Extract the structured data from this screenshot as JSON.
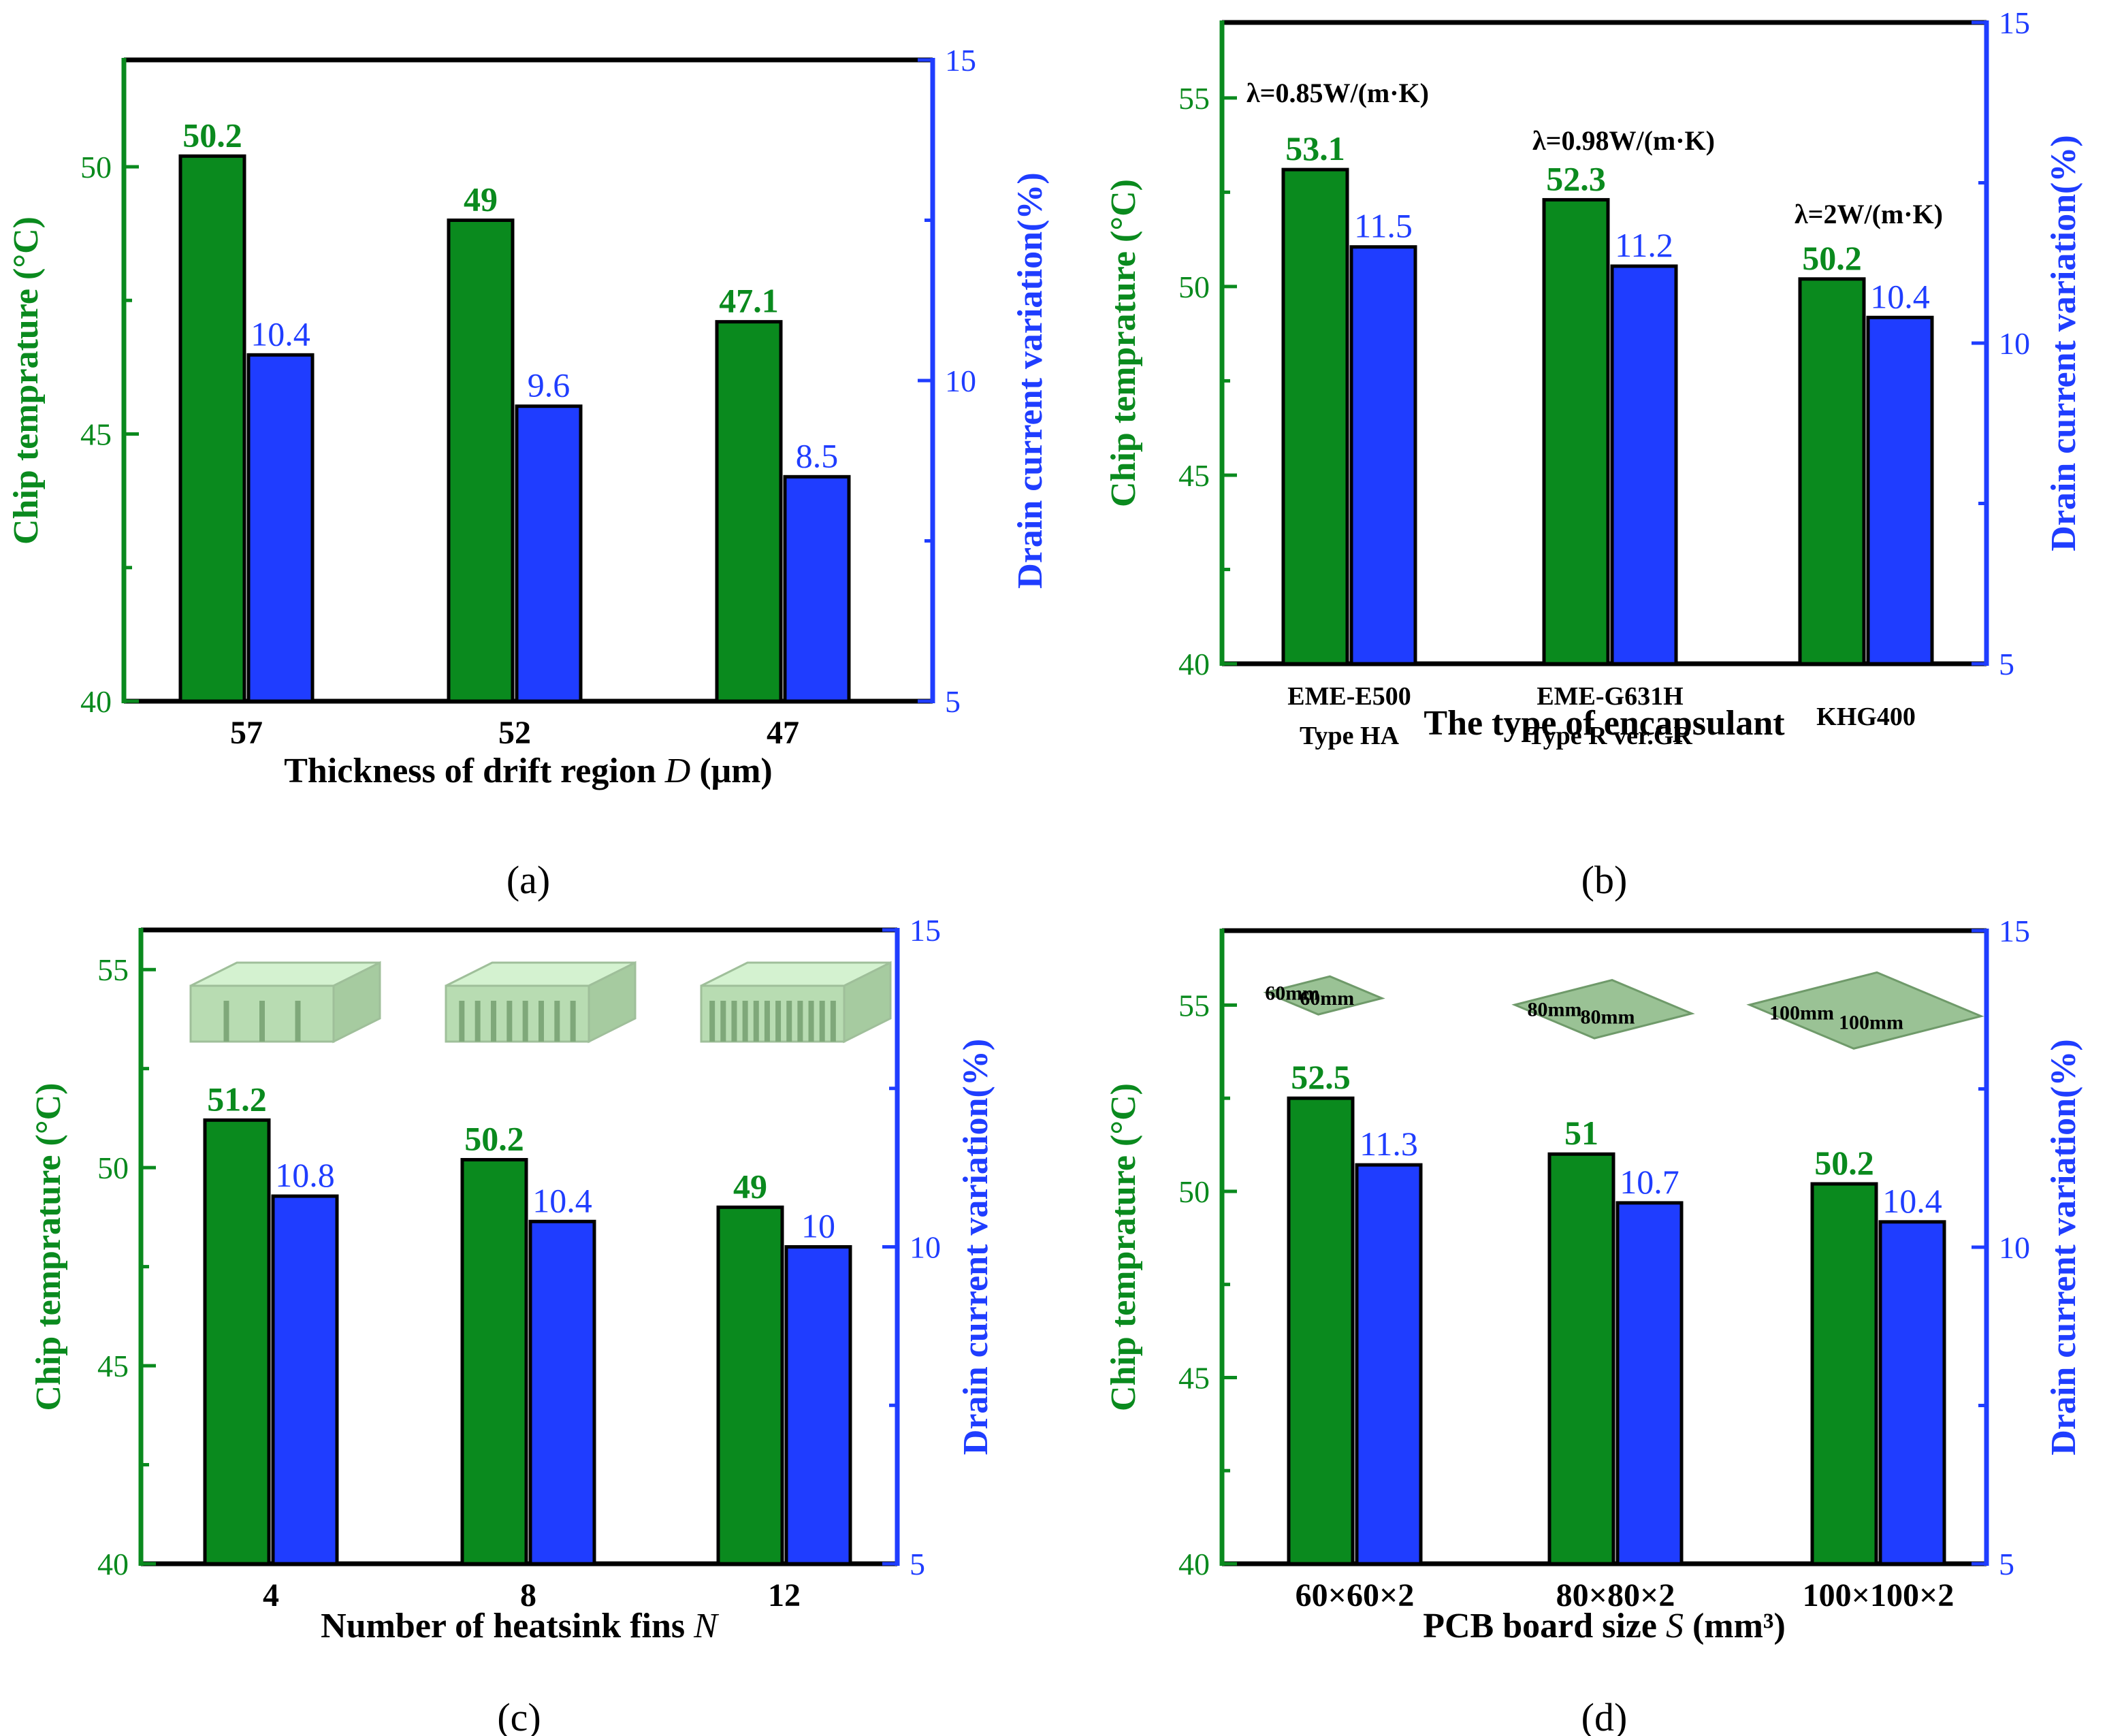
{
  "colors": {
    "green": "#0a8a1e",
    "blue": "#1f3dff",
    "black": "#000000"
  },
  "chart_data": [
    {
      "type": "bar",
      "panel": "(a)",
      "categories": [
        "57",
        "52",
        "47"
      ],
      "xlabel": "Thickness of drift region D (μm)",
      "xlabel_main": "Thickness of drift region ",
      "xlabel_var": "D",
      "xlabel_tail": " (μm)",
      "ylabel": "Chip temprature (°C)",
      "y2label": "Drain current variation(%)",
      "ylim": [
        40,
        52
      ],
      "yticks": [
        "40",
        "45",
        "50"
      ],
      "y2lim": [
        5,
        15
      ],
      "y2ticks": [
        "5",
        "10",
        "15"
      ],
      "series": [
        {
          "name": "Chip temprature (°C)",
          "axis": "left",
          "values": [
            50.2,
            49,
            47.1
          ],
          "labels": [
            "50.2",
            "49",
            "47.1"
          ]
        },
        {
          "name": "Drain current variation(%)",
          "axis": "right",
          "values": [
            10.4,
            9.6,
            8.5
          ],
          "labels": [
            "10.4",
            "9.6",
            "8.5"
          ]
        }
      ],
      "annotations": []
    },
    {
      "type": "bar",
      "panel": "(b)",
      "categories": [
        "EME-E500 Type HA",
        "EME-G631H Type R ver.GR",
        "KHG400"
      ],
      "category_lines": [
        [
          "EME-E500",
          "Type HA"
        ],
        [
          "EME-G631H",
          "Type R ver.GR"
        ],
        [
          "KHG400"
        ]
      ],
      "xlabel": "The type of encapsulant",
      "xlabel_main": "The type of encapsulant",
      "xlabel_var": "",
      "xlabel_tail": "",
      "ylabel": "Chip temprature (°C)",
      "y2label": "Drain current variation(%)",
      "ylim": [
        40,
        57
      ],
      "yticks": [
        "40",
        "45",
        "50",
        "55"
      ],
      "y2lim": [
        5,
        15
      ],
      "y2ticks": [
        "5",
        "10",
        "15"
      ],
      "series": [
        {
          "name": "Chip temprature (°C)",
          "axis": "left",
          "values": [
            53.1,
            52.3,
            50.2
          ],
          "labels": [
            "53.1",
            "52.3",
            "50.2"
          ]
        },
        {
          "name": "Drain current variation(%)",
          "axis": "right",
          "values": [
            11.5,
            11.2,
            10.4
          ],
          "labels": [
            "11.5",
            "11.2",
            "10.4"
          ]
        }
      ],
      "annotations": [
        "λ=0.85W/(m·K)",
        "λ=0.98W/(m·K)",
        "λ=2W/(m·K)"
      ]
    },
    {
      "type": "bar",
      "panel": "(c)",
      "categories": [
        "4",
        "8",
        "12"
      ],
      "xlabel": "Number of heatsink fins N",
      "xlabel_main": "Number of heatsink fins ",
      "xlabel_var": "N",
      "xlabel_tail": "",
      "ylabel": "Chip temprature (°C)",
      "y2label": "Drain current variation(%)",
      "ylim": [
        40,
        56
      ],
      "yticks": [
        "40",
        "45",
        "50",
        "55"
      ],
      "y2lim": [
        5,
        15
      ],
      "y2ticks": [
        "5",
        "10",
        "15"
      ],
      "series": [
        {
          "name": "Chip temprature (°C)",
          "axis": "left",
          "values": [
            51.2,
            50.2,
            49
          ],
          "labels": [
            "51.2",
            "50.2",
            "49"
          ]
        },
        {
          "name": "Drain current variation(%)",
          "axis": "right",
          "values": [
            10.8,
            10.4,
            10
          ],
          "labels": [
            "10.8",
            "10.4",
            "10"
          ]
        }
      ],
      "annotations": []
    },
    {
      "type": "bar",
      "panel": "(d)",
      "categories": [
        "60×60×2",
        "80×80×2",
        "100×100×2"
      ],
      "xlabel": "PCB board size S (mm³)",
      "xlabel_main": "PCB board size ",
      "xlabel_var": "S",
      "xlabel_tail": " (mm³)",
      "ylabel": "Chip temprature (°C)",
      "y2label": "Drain current variation(%)",
      "ylim": [
        40,
        57
      ],
      "yticks": [
        "40",
        "45",
        "50",
        "55"
      ],
      "y2lim": [
        5,
        15
      ],
      "y2ticks": [
        "5",
        "10",
        "15"
      ],
      "series": [
        {
          "name": "Chip temprature (°C)",
          "axis": "left",
          "values": [
            52.5,
            51,
            50.2
          ],
          "labels": [
            "52.5",
            "51",
            "50.2"
          ]
        },
        {
          "name": "Drain current variation(%)",
          "axis": "right",
          "values": [
            11.3,
            10.7,
            10.4
          ],
          "labels": [
            "11.3",
            "10.7",
            "10.4"
          ]
        }
      ],
      "annotations": [],
      "board_labels": [
        [
          "60mm",
          "60mm"
        ],
        [
          "80mm",
          "80mm"
        ],
        [
          "100mm",
          "100mm"
        ]
      ]
    }
  ]
}
